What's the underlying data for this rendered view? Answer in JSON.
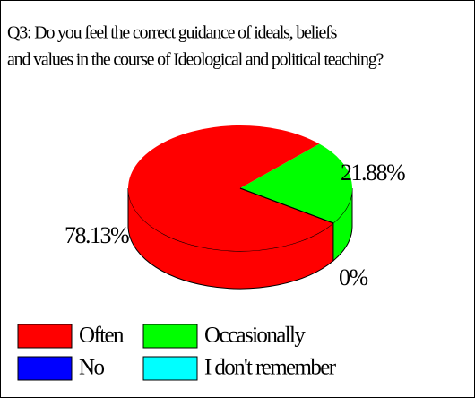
{
  "chart_data": {
    "type": "pie",
    "title": [
      "Q3: Do you feel the correct guidance of ideals, beliefs",
      "and values in the course of Ideological and political teaching?"
    ],
    "categories": [
      "Often",
      "Occasionally",
      "No",
      "I don't remember"
    ],
    "values": [
      78.13,
      21.88,
      0,
      0
    ],
    "value_labels": [
      "78.13%",
      "21.88%",
      "0%",
      null
    ],
    "colors": [
      "#ff0000",
      "#00ff00",
      "#0000ff",
      "#00ffff"
    ],
    "legend": "bottom"
  }
}
